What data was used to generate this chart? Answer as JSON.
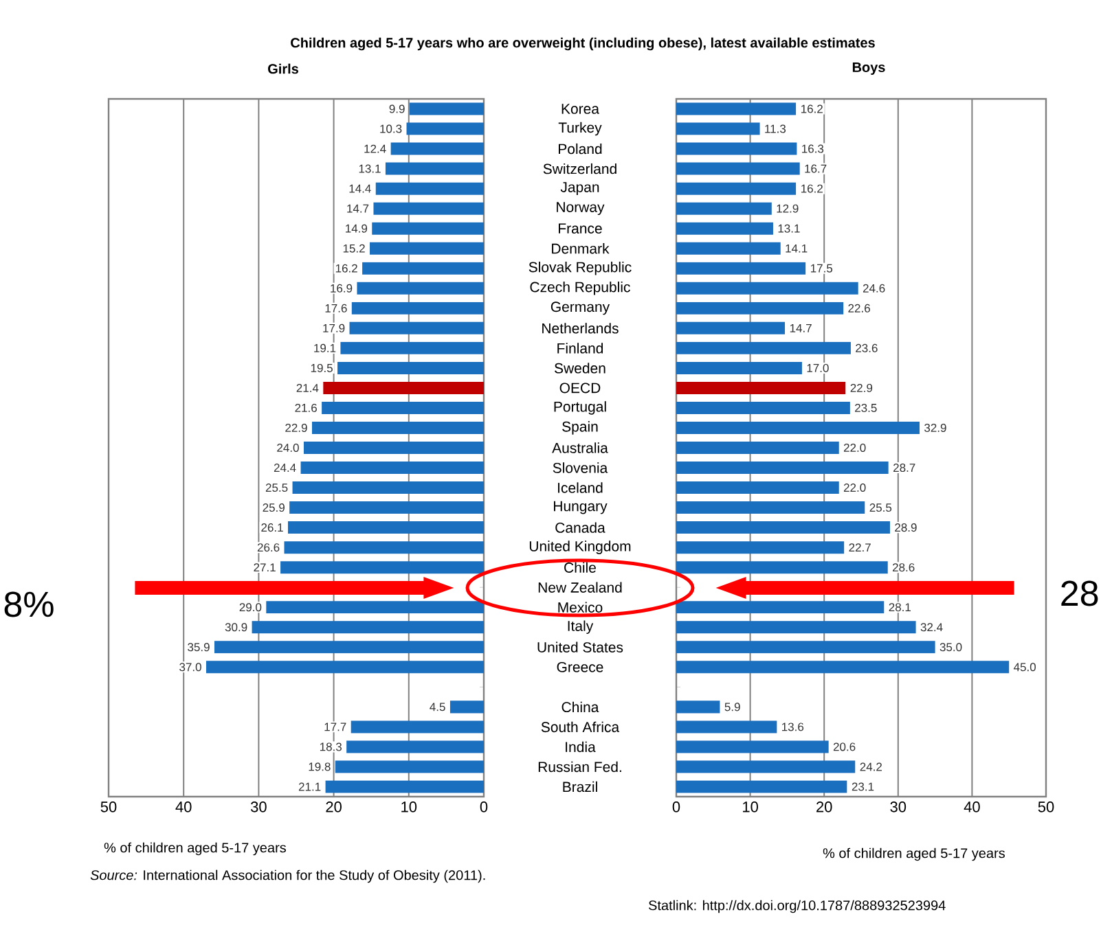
{
  "chart_data": [
    {
      "type": "bar",
      "orientation": "horizontal",
      "title": "Children aged 5-17 years who are overweight (including obese), latest available estimates",
      "subtitle": "Girls",
      "xlabel": "% of children aged 5-17 years",
      "categories": [
        "Korea",
        "Turkey",
        "Poland",
        "Switzerland",
        "Japan",
        "Norway",
        "France",
        "Denmark",
        "Slovak Republic",
        "Czech Republic",
        "Germany",
        "Netherlands",
        "Finland",
        "Sweden",
        "OECD",
        "Portugal",
        "Spain",
        "Australia",
        "Slovenia",
        "Iceland",
        "Hungary",
        "Canada",
        "United Kingdom",
        "Chile",
        "New Zealand",
        "Mexico",
        "Italy",
        "United States",
        "Greece",
        null,
        "China",
        "South Africa",
        "India",
        "Russian Fed.",
        "Brazil"
      ],
      "values": [
        9.9,
        10.3,
        12.4,
        13.1,
        14.4,
        14.7,
        14.9,
        15.2,
        16.2,
        16.9,
        17.6,
        17.9,
        19.1,
        19.5,
        21.4,
        21.6,
        22.9,
        24.0,
        24.4,
        25.5,
        25.9,
        26.1,
        26.6,
        27.1,
        null,
        29.0,
        30.9,
        35.9,
        37.0,
        null,
        4.5,
        17.7,
        18.3,
        19.8,
        21.1
      ],
      "colors": [
        "#1a6fbf",
        "#1a6fbf",
        "#1a6fbf",
        "#1a6fbf",
        "#1a6fbf",
        "#1a6fbf",
        "#1a6fbf",
        "#1a6fbf",
        "#1a6fbf",
        "#1a6fbf",
        "#1a6fbf",
        "#1a6fbf",
        "#1a6fbf",
        "#1a6fbf",
        "#c00000",
        "#1a6fbf",
        "#1a6fbf",
        "#1a6fbf",
        "#1a6fbf",
        "#1a6fbf",
        "#1a6fbf",
        "#1a6fbf",
        "#1a6fbf",
        "#1a6fbf",
        "#1a6fbf",
        "#1a6fbf",
        "#1a6fbf",
        "#1a6fbf",
        "#1a6fbf",
        "#1a6fbf",
        "#1a6fbf",
        "#1a6fbf",
        "#1a6fbf",
        "#1a6fbf",
        "#1a6fbf"
      ],
      "value_labels": [
        "9.9",
        "10.3",
        "12.4",
        "13.1",
        "14.4",
        "14.7",
        "14.9",
        "15.2",
        "16.2",
        "16.9",
        "17.6",
        "17.9",
        "19.1",
        "19.5",
        "21.4",
        "21.6",
        "22.9",
        "24.0",
        "24.4",
        "25.5",
        "25.9",
        "26.1",
        "26.6",
        "27.1",
        null,
        "29.0",
        "30.9",
        "35.9",
        "37.0",
        null,
        "4.5",
        "17.7",
        "18.3",
        "19.8",
        "21.1"
      ],
      "xlim": [
        50,
        0
      ],
      "xticks": [
        50,
        40,
        30,
        20,
        10,
        0
      ],
      "grid": "x",
      "annotations": [
        "8%",
        "*Source:* International Association for the Study of Obesity (2011)."
      ]
    },
    {
      "type": "bar",
      "orientation": "horizontal",
      "subtitle": "Boys",
      "xlabel": "% of children aged 5-17 years",
      "values": [
        16.2,
        11.3,
        16.3,
        16.7,
        16.2,
        12.9,
        13.1,
        14.1,
        17.5,
        24.6,
        22.6,
        14.7,
        23.6,
        17.0,
        22.9,
        23.5,
        32.9,
        22.0,
        28.7,
        22.0,
        25.5,
        28.9,
        22.7,
        28.6,
        null,
        28.1,
        32.4,
        35.0,
        45.0,
        null,
        5.9,
        13.6,
        20.6,
        24.2,
        23.1
      ],
      "colors": [
        "#1a6fbf",
        "#1a6fbf",
        "#1a6fbf",
        "#1a6fbf",
        "#1a6fbf",
        "#1a6fbf",
        "#1a6fbf",
        "#1a6fbf",
        "#1a6fbf",
        "#1a6fbf",
        "#1a6fbf",
        "#1a6fbf",
        "#1a6fbf",
        "#1a6fbf",
        "#c00000",
        "#1a6fbf",
        "#1a6fbf",
        "#1a6fbf",
        "#1a6fbf",
        "#1a6fbf",
        "#1a6fbf",
        "#1a6fbf",
        "#1a6fbf",
        "#1a6fbf",
        "#1a6fbf",
        "#1a6fbf",
        "#1a6fbf",
        "#1a6fbf",
        "#1a6fbf",
        "#1a6fbf",
        "#1a6fbf",
        "#1a6fbf",
        "#1a6fbf",
        "#1a6fbf",
        "#1a6fbf"
      ],
      "value_labels": [
        "16.2",
        "11.3",
        "16.3",
        "16.7",
        "16.2",
        "12.9",
        "13.1",
        "14.1",
        "17.5",
        "24.6",
        "22.6",
        "14.7",
        "23.6",
        "17.0",
        "22.9",
        "23.5",
        "32.9",
        "22.0",
        "28.7",
        "22.0",
        "25.5",
        "28.9",
        "22.7",
        "28.6",
        null,
        "28.1",
        "32.4",
        "35.0",
        "45.0",
        null,
        "5.9",
        "13.6",
        "20.6",
        "24.2",
        "23.1"
      ],
      "xlim": [
        0,
        50
      ],
      "xticks": [
        0,
        10,
        20,
        30,
        40,
        50
      ],
      "grid": "x",
      "tick_labels": "x",
      "annotations": [
        "28",
        "Statlink: http://dx.doi.org/10.1787/888932523994"
      ]
    }
  ]
}
